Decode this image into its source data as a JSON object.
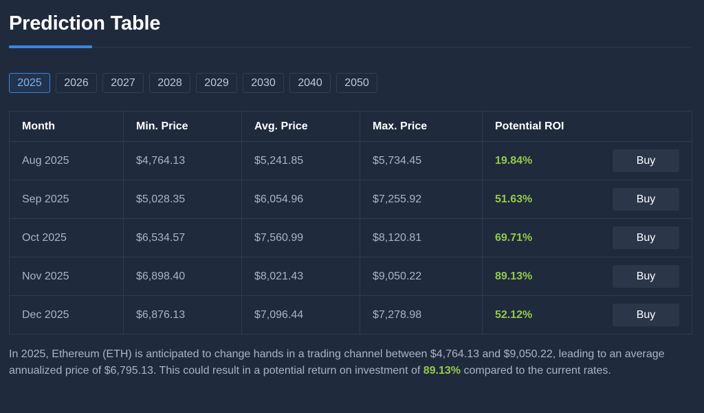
{
  "header": {
    "title": "Prediction Table"
  },
  "year_tabs": [
    {
      "label": "2025",
      "active": true
    },
    {
      "label": "2026",
      "active": false
    },
    {
      "label": "2027",
      "active": false
    },
    {
      "label": "2028",
      "active": false
    },
    {
      "label": "2029",
      "active": false
    },
    {
      "label": "2030",
      "active": false
    },
    {
      "label": "2040",
      "active": false
    },
    {
      "label": "2050",
      "active": false
    }
  ],
  "table": {
    "headers": [
      "Month",
      "Min. Price",
      "Avg. Price",
      "Max. Price",
      "Potential ROI"
    ],
    "buy_label": "Buy",
    "rows": [
      {
        "month": "Aug 2025",
        "min": "$4,764.13",
        "avg": "$5,241.85",
        "max": "$5,734.45",
        "roi": "19.84%"
      },
      {
        "month": "Sep 2025",
        "min": "$5,028.35",
        "avg": "$6,054.96",
        "max": "$7,255.92",
        "roi": "51.63%"
      },
      {
        "month": "Oct 2025",
        "min": "$6,534.57",
        "avg": "$7,560.99",
        "max": "$8,120.81",
        "roi": "69.71%"
      },
      {
        "month": "Nov 2025",
        "min": "$6,898.40",
        "avg": "$8,021.43",
        "max": "$9,050.22",
        "roi": "89.13%"
      },
      {
        "month": "Dec 2025",
        "min": "$6,876.13",
        "avg": "$7,096.44",
        "max": "$7,278.98",
        "roi": "52.12%"
      }
    ]
  },
  "summary": {
    "text_before": "In 2025, Ethereum (ETH) is anticipated to change hands in a trading channel between $4,764.13 and $9,050.22, leading to an average annualized price of $6,795.13. This could result in a potential return on investment of ",
    "roi_highlight": "89.13%",
    "text_after": " compared to the current rates."
  },
  "colors": {
    "background": "#1f2a3c",
    "accent": "#3a87dd",
    "roi_green": "#95c94a",
    "button_bg": "#2b3649"
  }
}
